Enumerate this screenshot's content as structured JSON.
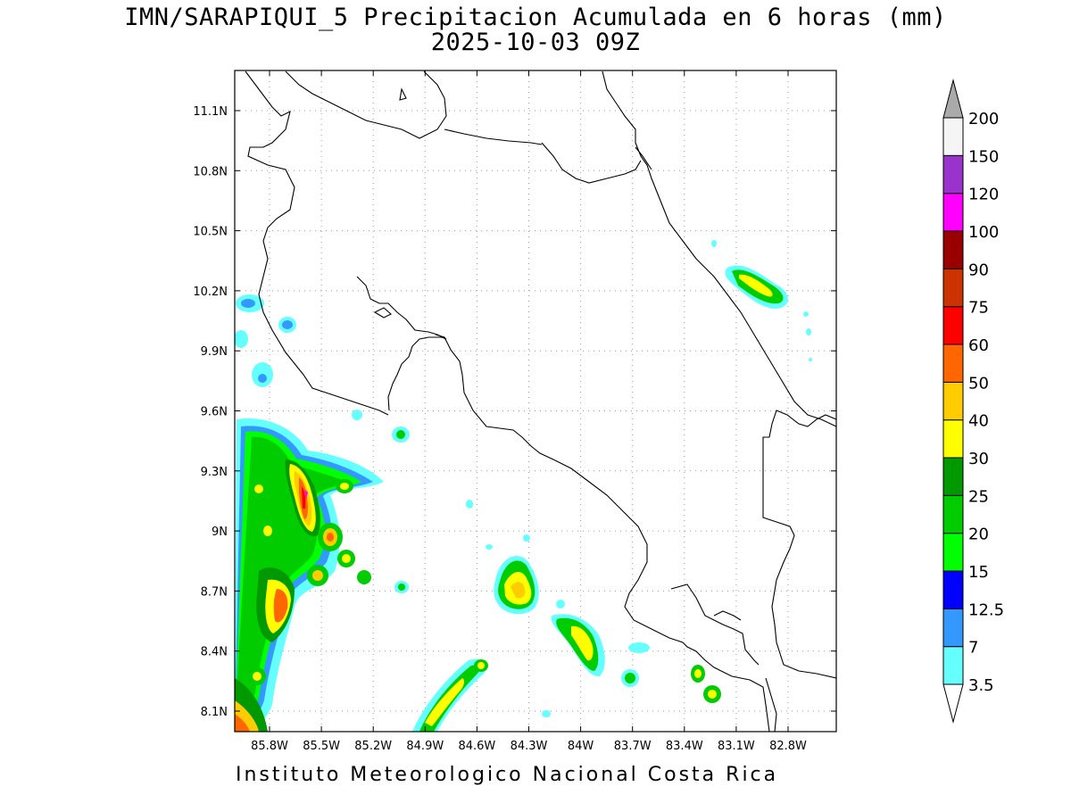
{
  "title_line1": "IMN/SARAPIQUI_5 Precipitacion Acumulada en 6 horas (mm)",
  "title_line2": "2025-10-03 09Z",
  "footer": "Instituto Meteorologico Nacional Costa Rica",
  "map": {
    "lon_range": [
      -86.0,
      -83.0
    ],
    "lat_range": [
      8.0,
      11.3
    ],
    "lon_ticks": [
      "85.8W",
      "85.5W",
      "85.2W",
      "84.9W",
      "84.6W",
      "84.3W",
      "84W",
      "83.7W",
      "83.4W",
      "83.1W",
      "82.8W"
    ],
    "lat_ticks": [
      "11.1N",
      "10.8N",
      "10.5N",
      "10.2N",
      "9.9N",
      "9.6N",
      "9.3N",
      "9N",
      "8.7N",
      "8.4N",
      "8.1N"
    ]
  },
  "colorbar": {
    "labels": [
      "3.5",
      "7",
      "12.5",
      "15",
      "20",
      "25",
      "30",
      "40",
      "50",
      "60",
      "75",
      "90",
      "100",
      "120",
      "150",
      "200"
    ],
    "colors": [
      "#66ffff",
      "#3399ff",
      "#0000ff",
      "#00ff00",
      "#00cc00",
      "#009900",
      "#ffff00",
      "#ffcc00",
      "#ff6600",
      "#ff0000",
      "#cc3300",
      "#990000",
      "#ff00ff",
      "#9933cc",
      "#f5f5f5",
      "#aaaaaa"
    ]
  }
}
